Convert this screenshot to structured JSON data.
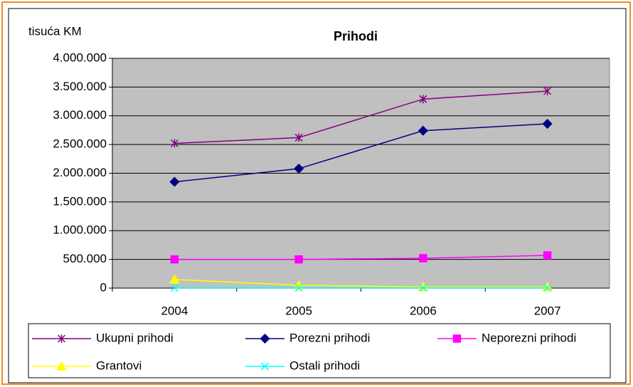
{
  "chart_data": {
    "type": "line",
    "title": "Prihodi",
    "y_label": "tisuća KM",
    "categories": [
      "2004",
      "2005",
      "2006",
      "2007"
    ],
    "series": [
      {
        "name": "Ukupni prihodi",
        "color": "#800080",
        "marker": "star",
        "values": [
          2520000,
          2620000,
          3290000,
          3430000
        ]
      },
      {
        "name": "Porezni prihodi",
        "color": "#000080",
        "marker": "diamond",
        "values": [
          1850000,
          2080000,
          2740000,
          2860000
        ]
      },
      {
        "name": "Neporezni prihodi",
        "color": "#FF00FF",
        "marker": "square",
        "values": [
          500000,
          500000,
          520000,
          570000
        ]
      },
      {
        "name": "Grantovi",
        "color": "#FFFF00",
        "marker": "triangle",
        "values": [
          150000,
          50000,
          20000,
          20000
        ]
      },
      {
        "name": "Ostali prihodi",
        "color": "#00FFFF",
        "marker": "x",
        "values": [
          5000,
          5000,
          5000,
          5000
        ]
      }
    ],
    "ylim": [
      0,
      4000000
    ],
    "yticks": [
      0,
      {
        "value": 500000,
        "label": "500.000"
      },
      {
        "value": 1000000,
        "label": "1.000.000"
      },
      {
        "value": 1500000,
        "label": "1.500.000"
      },
      {
        "value": 2000000,
        "label": "2.000.000"
      },
      {
        "value": 2500000,
        "label": "2.500.000"
      },
      {
        "value": 3000000,
        "label": "3.000.000"
      },
      {
        "value": 3500000,
        "label": "3.500.000"
      },
      {
        "value": 4000000,
        "label": "4.000.000"
      }
    ],
    "grid": true,
    "legend": "bottom"
  }
}
